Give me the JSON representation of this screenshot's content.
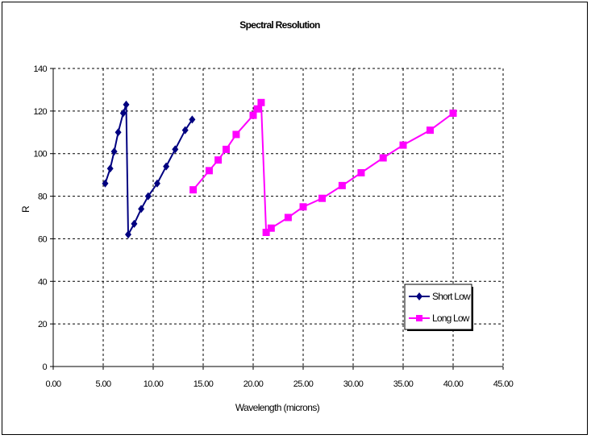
{
  "chart_data": {
    "type": "line",
    "title": "Spectral Resolution",
    "xlabel": "Wavelength (microns)",
    "ylabel": "R",
    "xlim": [
      0,
      45
    ],
    "ylim": [
      0,
      140
    ],
    "x_ticks": [
      "0.00",
      "5.00",
      "10.00",
      "15.00",
      "20.00",
      "25.00",
      "30.00",
      "35.00",
      "40.00",
      "45.00"
    ],
    "y_ticks": [
      "0",
      "20",
      "40",
      "60",
      "80",
      "100",
      "120",
      "140"
    ],
    "grid": true,
    "legend_position": "right",
    "series": [
      {
        "name": "Short Low",
        "color": "#000080",
        "marker": "diamond",
        "x": [
          5.2,
          5.7,
          6.1,
          6.5,
          7.0,
          7.3,
          7.5,
          8.1,
          8.8,
          9.5,
          10.4,
          11.3,
          12.2,
          13.2,
          13.9
        ],
        "y": [
          86,
          93,
          101,
          110,
          119,
          123,
          62,
          67,
          74,
          80,
          86,
          94,
          102,
          111,
          116
        ]
      },
      {
        "name": "Long Low",
        "color": "#ff00ff",
        "marker": "square",
        "x": [
          14.0,
          15.6,
          16.5,
          17.3,
          18.3,
          20.0,
          20.4,
          20.8,
          21.3,
          21.8,
          23.5,
          25.0,
          26.9,
          28.9,
          30.8,
          33.0,
          35.0,
          37.7,
          40.0
        ],
        "y": [
          83,
          92,
          97,
          102,
          109,
          118,
          121,
          124,
          63,
          65,
          70,
          75,
          79,
          85,
          91,
          98,
          104,
          111,
          119
        ]
      }
    ]
  }
}
